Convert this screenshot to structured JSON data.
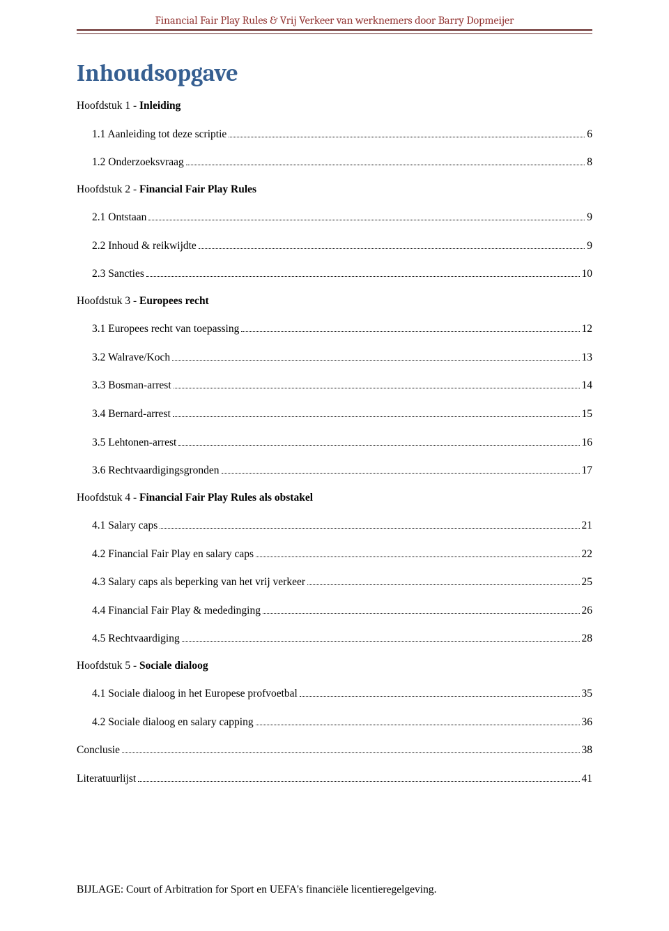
{
  "header": {
    "title": "Financial Fair Play Rules & Vrij Verkeer van werknemers door Barry Dopmeijer"
  },
  "page_title": "Inhoudsopgave",
  "toc": [
    {
      "prefix": "Hoofdstuk 1 - ",
      "bold": "Inleiding",
      "suffix": "",
      "page": "",
      "indent": false
    },
    {
      "prefix": "",
      "bold": "",
      "suffix": "1.1 Aanleiding tot deze scriptie",
      "page": "6",
      "indent": true
    },
    {
      "prefix": "",
      "bold": "",
      "suffix": "1.2 Onderzoeksvraag",
      "page": "8",
      "indent": true
    },
    {
      "prefix": "Hoofdstuk 2 - ",
      "bold": "Financial Fair Play Rules",
      "suffix": "",
      "page": "",
      "indent": false
    },
    {
      "prefix": "",
      "bold": "",
      "suffix": "2.1 Ontstaan",
      "page": "9",
      "indent": true
    },
    {
      "prefix": "",
      "bold": "",
      "suffix": "2.2 Inhoud & reikwijdte",
      "page": "9",
      "indent": true
    },
    {
      "prefix": "",
      "bold": "",
      "suffix": "2.3 Sancties",
      "page": "10",
      "indent": true
    },
    {
      "prefix": "Hoofdstuk 3 - ",
      "bold": "Europees recht",
      "suffix": "",
      "page": "",
      "indent": false
    },
    {
      "prefix": "",
      "bold": "",
      "suffix": "3.1 Europees recht van toepassing",
      "page": "12",
      "indent": true
    },
    {
      "prefix": "",
      "bold": "",
      "suffix": "3.2 Walrave/Koch",
      "page": "13",
      "indent": true
    },
    {
      "prefix": "",
      "bold": "",
      "suffix": "3.3 Bosman-arrest",
      "page": "14",
      "indent": true
    },
    {
      "prefix": "",
      "bold": "",
      "suffix": "3.4 Bernard-arrest",
      "page": "15",
      "indent": true
    },
    {
      "prefix": "",
      "bold": "",
      "suffix": "3.5 Lehtonen-arrest",
      "page": "16",
      "indent": true
    },
    {
      "prefix": "",
      "bold": "",
      "suffix": "3.6 Rechtvaardigingsgronden",
      "page": "17",
      "indent": true
    },
    {
      "prefix": "Hoofdstuk 4 - ",
      "bold": "Financial Fair Play Rules als obstakel",
      "suffix": "",
      "page": "",
      "indent": false
    },
    {
      "prefix": "",
      "bold": "",
      "suffix": "4.1 Salary caps",
      "page": "21",
      "indent": true
    },
    {
      "prefix": "",
      "bold": "",
      "suffix": "4.2 Financial Fair Play en salary caps",
      "page": "22",
      "indent": true
    },
    {
      "prefix": "",
      "bold": "",
      "suffix": "4.3 Salary caps als beperking van het vrij verkeer",
      "page": "25",
      "indent": true
    },
    {
      "prefix": "",
      "bold": "",
      "suffix": "4.4 Financial Fair Play & mededinging",
      "page": "26",
      "indent": true
    },
    {
      "prefix": "",
      "bold": "",
      "suffix": "4.5 Rechtvaardiging",
      "page": "28",
      "indent": true
    },
    {
      "prefix": "Hoofdstuk 5 - ",
      "bold": "Sociale dialoog",
      "suffix": "",
      "page": "",
      "indent": false
    },
    {
      "prefix": "",
      "bold": "",
      "suffix": "4.1 Sociale dialoog in het Europese profvoetbal",
      "page": "35",
      "indent": true
    },
    {
      "prefix": "",
      "bold": "",
      "suffix": "4.2 Sociale dialoog en salary capping",
      "page": "36",
      "indent": true
    },
    {
      "prefix": "Conclusie",
      "bold": "",
      "suffix": "",
      "page": "38",
      "indent": false,
      "gap": true
    },
    {
      "prefix": "Literatuurlijst",
      "bold": "",
      "suffix": "",
      "page": "41",
      "indent": false,
      "gap": true
    }
  ],
  "footer": "BIJLAGE: Court of Arbitration for Sport en UEFA's financiële licentieregelgeving.",
  "colors": {
    "header_text": "#943634",
    "header_rule": "#622423",
    "title_text": "#365f91",
    "body_text": "#000000",
    "background": "#ffffff"
  },
  "typography": {
    "header_font": "Cambria",
    "body_font": "Times New Roman",
    "title_size_pt": 26,
    "body_size_pt": 12,
    "header_size_pt": 12
  }
}
